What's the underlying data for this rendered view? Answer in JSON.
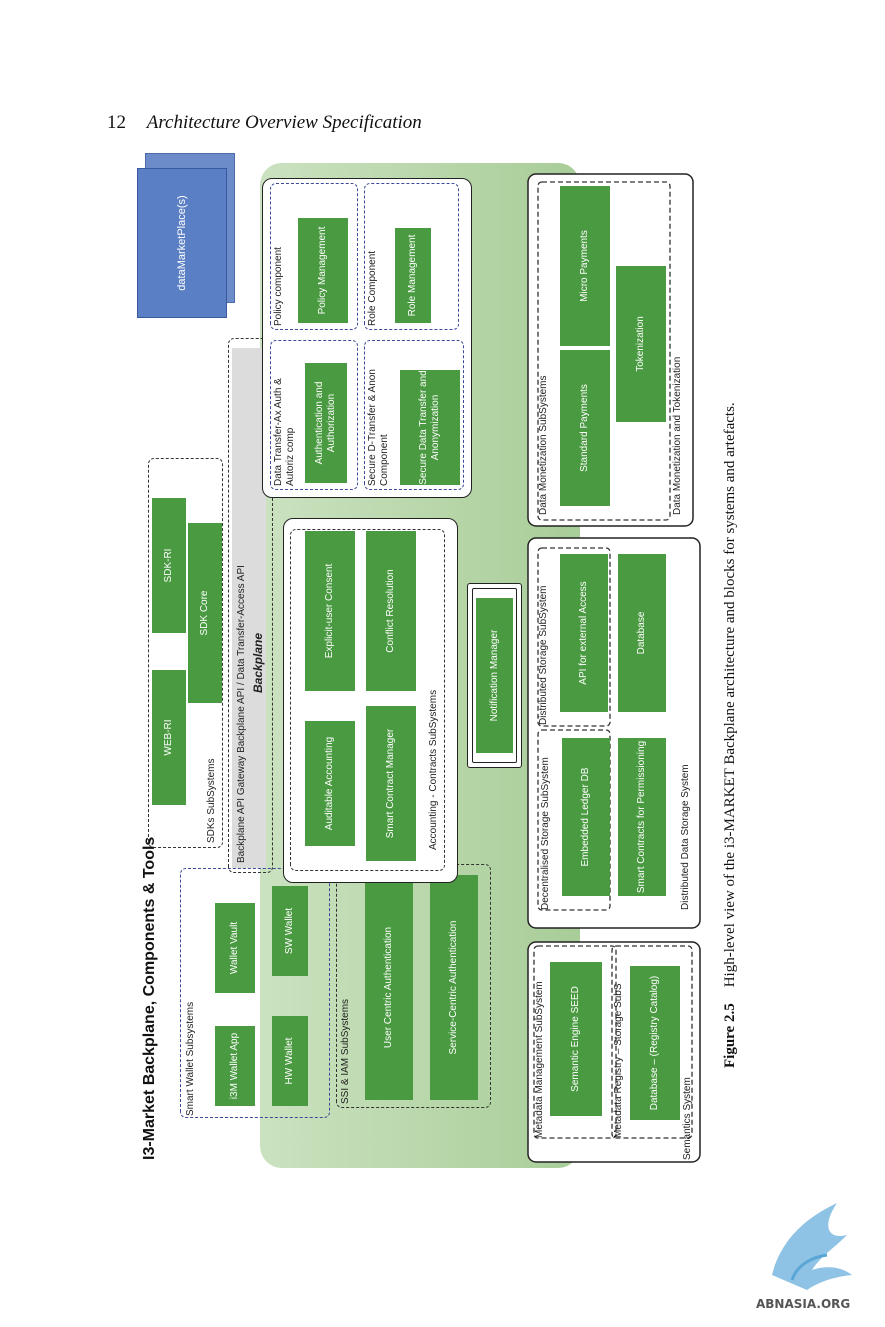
{
  "header": {
    "page_number": "12",
    "running_title": "Architecture Overview Specification"
  },
  "diagram": {
    "title": "I3-Market Backplane, Components & Tools",
    "marketplace": "dataMarketPlace(s)",
    "smart_wallet": {
      "label": "Smart Wallet Subsystems",
      "items": [
        "i3M Wallet App",
        "Wallet Vault",
        "HW Wallet",
        "SW Wallet"
      ]
    },
    "ssi_iam": {
      "label": "SSI & IAM SubSystems",
      "items": [
        "User Centric Authentication",
        "Service-Centric Authentication"
      ]
    },
    "sdks": {
      "label": "SDKs SubSystems",
      "items": [
        "WEB-RI",
        "SDK Core",
        "SDK-RI"
      ]
    },
    "backplane": {
      "api_label": "Backplane API Gateway     Backplane API / Data Transfer-Access API",
      "label": "Backplane"
    },
    "accounting": {
      "label": "Accounting - Contracts SubSystems",
      "items": [
        "Auditable Accounting",
        "Explicit-user Consent",
        "Smart Contract Manager",
        "Conflict Resolution"
      ]
    },
    "notification": "Notification Manager",
    "data_transfer": {
      "label": "Data Transfer-Ax Auth & Autoriz comp",
      "item": "Authentication and Authorization"
    },
    "policy": {
      "label": "Policy component",
      "item": "Policy Management"
    },
    "secure_transfer": {
      "label": "Secure D-Transfer & Anon Component",
      "item": "Secure Data Transfer and Anonymization"
    },
    "role": {
      "label": "Role Component",
      "item": "Role Management"
    },
    "semantics": {
      "label": "Semantics System",
      "metadata_mgmt": {
        "label": "Metadata Management SubSystem",
        "item": "Semantic Engine SEED"
      },
      "metadata_registry": {
        "label": "Metadata Registry – Storage SubS",
        "item": "Database – (Registry Catalog)"
      }
    },
    "storage": {
      "label": "Distributed Data Storage System",
      "decentralised": {
        "label": "Decentralised Storage SubSystem",
        "items": [
          "Embedded Ledger DB",
          "Smart Contracts for Permissioning"
        ]
      },
      "distributed": {
        "label": "Distributed Storage SubSystem",
        "items": [
          "API for external Access",
          "Database"
        ]
      }
    },
    "monetization": {
      "label": "Data Monetization and Tokenization",
      "sub_label": "Data Monetization SubSystems",
      "items": [
        "Standard Payments",
        "Micro Payments",
        "Tokenization"
      ]
    }
  },
  "caption": {
    "number": "Figure 2.5",
    "text": "High-level view of the i3-MARKET Backplane architecture and blocks for systems and artefacts."
  },
  "logo_text": "ABNASIA.ORG",
  "colors": {
    "green_box": "#4a9a41",
    "panel": "#b5d6a7",
    "marketplace": "#5b7fc4",
    "dashed_blue": "#3b4a9a"
  }
}
